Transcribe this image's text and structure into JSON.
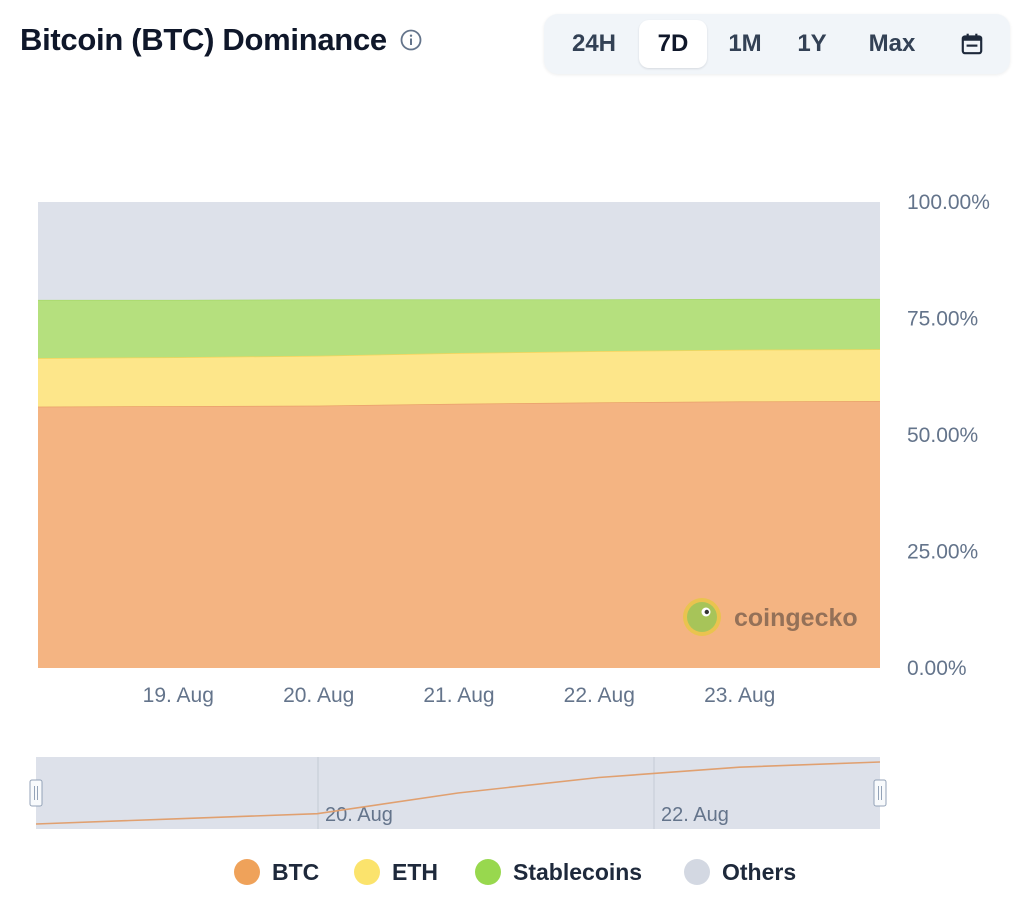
{
  "header": {
    "title": "Bitcoin (BTC) Dominance",
    "info_icon": "info-circle-icon"
  },
  "range_selector": {
    "options": [
      "24H",
      "7D",
      "1M",
      "1Y",
      "Max"
    ],
    "active": "7D",
    "calendar_icon": "calendar-icon"
  },
  "watermark": {
    "text": "coingecko",
    "logo_icon": "coingecko-logo-icon"
  },
  "chart_data": {
    "type": "area",
    "stacked": true,
    "x": [
      "18. Aug 12:00",
      "19. Aug",
      "20. Aug",
      "21. Aug",
      "22. Aug",
      "23. Aug",
      "23. Aug 08:00"
    ],
    "xtick_labels": [
      "19. Aug",
      "20. Aug",
      "21. Aug",
      "22. Aug",
      "23. Aug"
    ],
    "ytick_labels": [
      "0.00%",
      "25.00%",
      "50.00%",
      "75.00%",
      "100.00%"
    ],
    "ylim": [
      0,
      100
    ],
    "series": [
      {
        "name": "BTC",
        "color": "#f4b482",
        "values": [
          56.1,
          56.2,
          56.3,
          56.7,
          57.0,
          57.2,
          57.3
        ]
      },
      {
        "name": "ETH",
        "color": "#fde68a",
        "values": [
          10.4,
          10.5,
          10.7,
          10.9,
          11.0,
          11.1,
          11.1
        ]
      },
      {
        "name": "Stablecoins",
        "color": "#b5e07e",
        "values": [
          12.5,
          12.3,
          12.1,
          11.5,
          11.1,
          10.9,
          10.8
        ]
      },
      {
        "name": "Others",
        "color": "#dde1ea",
        "values": [
          21.0,
          21.0,
          20.9,
          20.9,
          20.9,
          20.8,
          20.8
        ]
      }
    ],
    "navigator": {
      "tick_labels": [
        "20. Aug",
        "22. Aug"
      ],
      "line_color": "#e0a070"
    },
    "legend_position": "bottom-center"
  }
}
